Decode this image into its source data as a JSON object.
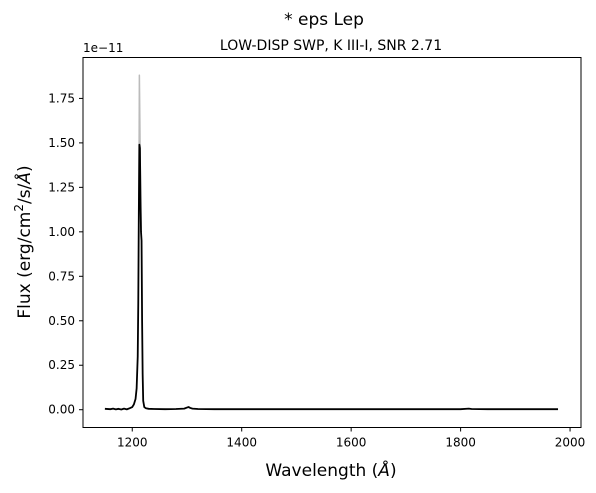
{
  "chart_data": {
    "type": "line",
    "suptitle": "* eps Lep",
    "title": "LOW-DISP SWP, K III-I, SNR 2.71",
    "xlabel_main": "Wavelength (",
    "xlabel_unit": "Å",
    "xlabel_close": ")",
    "ylabel_main": "Flux (erg/cm",
    "ylabel_sup": "2",
    "ylabel_mid": "/s/",
    "ylabel_unit": "Å",
    "ylabel_close": ")",
    "y_offset_label": "1e−11",
    "xlim": [
      1110,
      2020
    ],
    "ylim": [
      -0.1,
      1.98
    ],
    "x_ticks": [
      1200,
      1400,
      1600,
      1800,
      2000
    ],
    "x_tick_labels": [
      "1200",
      "1400",
      "1600",
      "1800",
      "2000"
    ],
    "y_ticks": [
      0.0,
      0.25,
      0.5,
      0.75,
      1.0,
      1.25,
      1.5,
      1.75
    ],
    "y_tick_labels": [
      "0.00",
      "0.25",
      "0.50",
      "0.75",
      "1.00",
      "1.25",
      "1.50",
      "1.75"
    ],
    "grid": false,
    "series": [
      {
        "color": "#000000",
        "x": [
          1150,
          1160,
          1165,
          1170,
          1175,
          1180,
          1185,
          1190,
          1195,
          1200,
          1203,
          1206,
          1208,
          1210,
          1211,
          1212,
          1213,
          1214,
          1215,
          1216,
          1217,
          1218,
          1219,
          1220,
          1222,
          1225,
          1230,
          1240,
          1260,
          1280,
          1295,
          1300,
          1303,
          1306,
          1310,
          1320,
          1350,
          1400,
          1450,
          1500,
          1550,
          1600,
          1650,
          1700,
          1750,
          1800,
          1815,
          1820,
          1850,
          1900,
          1950,
          1978
        ],
        "y": [
          0.005,
          0.003,
          0.006,
          0.002,
          0.005,
          0.001,
          0.006,
          0.002,
          0.008,
          0.015,
          0.03,
          0.06,
          0.12,
          0.3,
          0.6,
          1.1,
          1.49,
          1.47,
          1.2,
          1.0,
          0.95,
          0.5,
          0.2,
          0.05,
          0.015,
          0.008,
          0.005,
          0.004,
          0.003,
          0.004,
          0.006,
          0.012,
          0.015,
          0.01,
          0.006,
          0.004,
          0.003,
          0.003,
          0.003,
          0.003,
          0.003,
          0.003,
          0.003,
          0.003,
          0.003,
          0.003,
          0.006,
          0.004,
          0.003,
          0.003,
          0.003,
          0.003
        ]
      },
      {
        "color": "#bbbbbb",
        "x": [
          1212,
          1213,
          1214,
          1215,
          1216
        ],
        "y": [
          1.1,
          1.88,
          1.6,
          1.25,
          1.0
        ]
      }
    ]
  }
}
